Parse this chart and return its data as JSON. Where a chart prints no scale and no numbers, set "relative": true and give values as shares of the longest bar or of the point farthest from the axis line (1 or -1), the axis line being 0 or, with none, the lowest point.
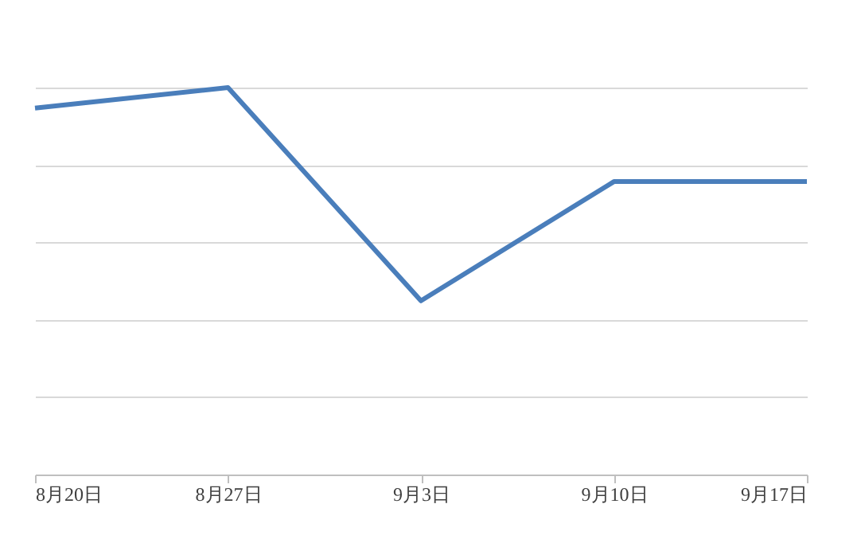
{
  "chart_data": {
    "type": "line",
    "categories": [
      "8月20日",
      "8月27日",
      "9月3日",
      "9月10日",
      "9月17日"
    ],
    "series": [
      {
        "color": "#4a7ebb",
        "values": [
          0.947,
          1,
          0.449,
          0.757,
          0.757
        ]
      }
    ],
    "relative": true,
    "grid": "y",
    "legend": false,
    "marker": "none",
    "line_style": "solid"
  }
}
